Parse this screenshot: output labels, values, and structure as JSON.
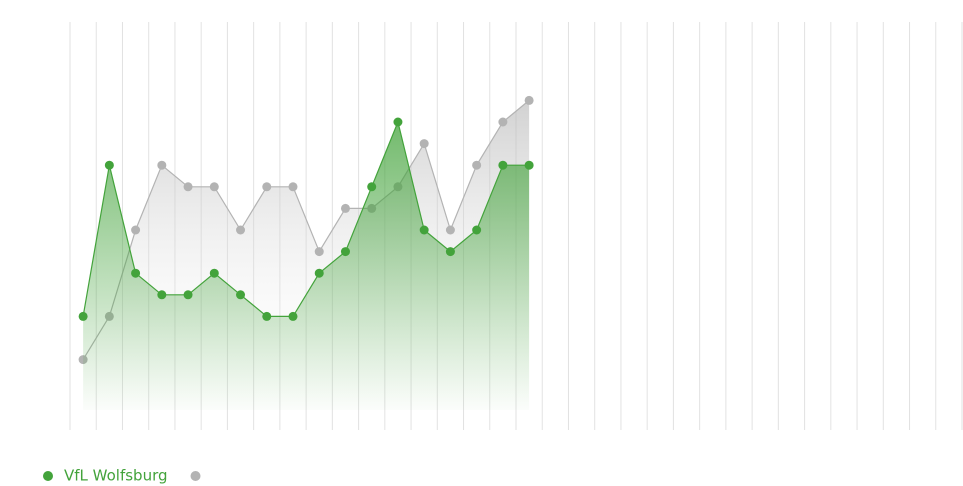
{
  "chart_data": {
    "type": "line",
    "x": [
      1,
      2,
      3,
      4,
      5,
      6,
      7,
      8,
      9,
      10,
      11,
      12,
      13,
      14,
      15,
      16,
      17,
      18
    ],
    "xlim": [
      0.5,
      34.5
    ],
    "xticks": [
      0.5,
      1.5,
      2.5,
      3.5,
      4.5,
      5.5,
      6.5,
      7.5,
      8.5,
      9.5,
      10.5,
      11.5,
      12.5,
      13.5,
      14.5,
      15.5,
      16.5,
      17.5,
      18.5,
      19.5,
      20.5,
      21.5,
      22.5,
      23.5,
      24.5,
      25.5,
      26.5,
      27.5,
      28.5,
      29.5,
      30.5,
      31.5,
      32.5,
      33.5,
      34.5
    ],
    "ylim": [
      1,
      18
    ],
    "y_inverted": true,
    "grid": true,
    "legend": "bottom-left",
    "series": [
      {
        "name": "VfL Wolfsburg",
        "color": "#43a33b",
        "values": [
          14,
          7,
          12,
          13,
          13,
          12,
          13,
          14,
          14,
          12,
          11,
          8,
          5,
          10,
          11,
          10,
          7,
          7
        ]
      },
      {
        "color": "#b3b3b3",
        "values": [
          16,
          14,
          10,
          7,
          8,
          8,
          10,
          8,
          8,
          11,
          9,
          9,
          8,
          6,
          10,
          7,
          5,
          4
        ]
      }
    ]
  }
}
